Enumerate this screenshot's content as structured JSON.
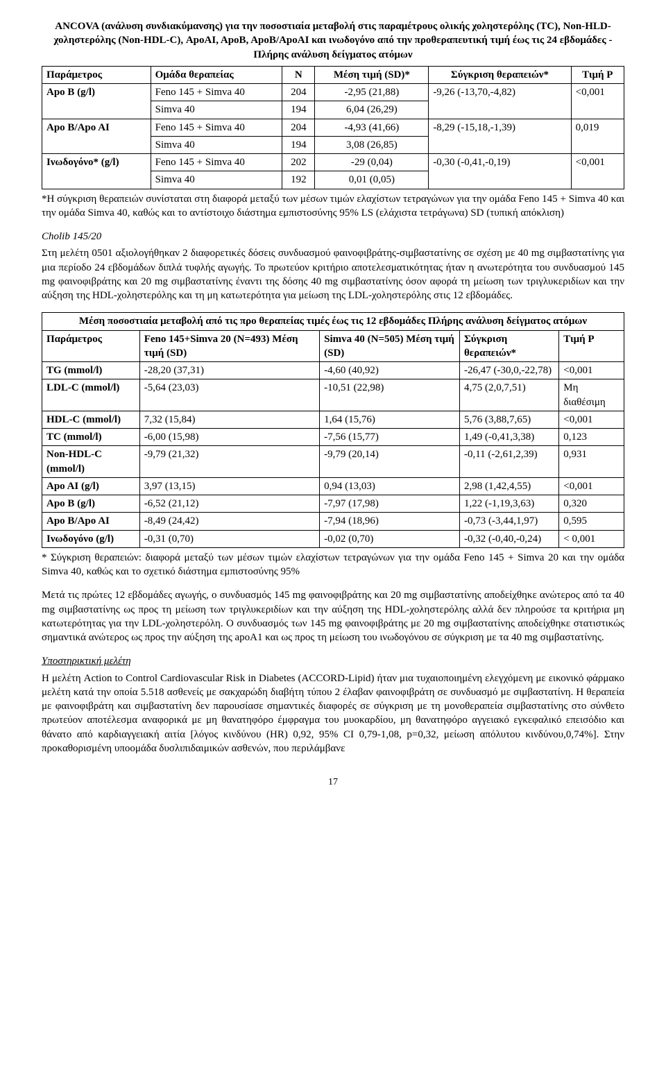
{
  "table1": {
    "title": "ANCOVA (ανάλυση συνδιακύμανσης) για την ποσοστιαία μεταβολή στις παραμέτρους ολικής χοληστερόλης (TC), Non-HLD-χοληστερόλης (Non-HDL-C), ApoAI, ApoB, ApoB/ApoAI και ινωδογόνο από την προθεραπευτική τιμή έως τις 24 εβδομάδες - Πλήρης ανάλυση δείγματος ατόμων",
    "headers": {
      "param": "Παράμετρος",
      "group": "Ομάδα θεραπείας",
      "n": "N",
      "mean": "Μέση τιμή (SD)*",
      "compare": "Σύγκριση θεραπειών*",
      "p": "Τιμή P"
    },
    "rows": {
      "r1": {
        "param": "Apo B (g/l)",
        "group_a": "Feno 145 + Simva 40",
        "group_b": "Simva 40",
        "n_a": "204",
        "n_b": "194",
        "mean_a": "-2,95 (21,88)",
        "mean_b": "6,04 (26,29)",
        "compare": "-9,26 (-13,70,-4,82)",
        "p": "<0,001"
      },
      "r2": {
        "param": "Apo B/Apo AI",
        "group_a": "Feno 145 + Simva 40",
        "group_b": "Simva 40",
        "n_a": "204",
        "n_b": "194",
        "mean_a": "-4,93 (41,66)",
        "mean_b": "3,08 (26,85)",
        "compare": "-8,29 (-15,18,-1,39)",
        "p": "0,019"
      },
      "r3": {
        "param": "Ινωδογόνο* (g/l)",
        "group_a": "Feno 145 + Simva 40",
        "group_b": "Simva 40",
        "n_a": "202",
        "n_b": "192",
        "mean_a": "-29 (0,04)",
        "mean_b": "0,01 (0,05)",
        "compare": "-0,30 (-0,41,-0,19)",
        "p": "<0,001"
      }
    },
    "footnote": "*Η σύγκριση θεραπειών συνίσταται στη διαφορά μεταξύ των μέσων τιμών ελαχίστων τετραγώνων για την ομάδα Feno 145 + Simva 40 και την ομάδα Simva 40, καθώς και το αντίστοιχο διάστημα εμπιστοσύνης 95% LS (ελάχιστα τετράγωνα) SD (τυπική απόκλιση)"
  },
  "section1": {
    "heading": "Cholib 145/20",
    "body": "Στη μελέτη 0501 αξιολογήθηκαν 2 διαφορετικές δόσεις συνδυασμού φαινοφιβράτης-σιμβαστατίνης σε σχέση με 40 mg σιμβαστατίνης για μια περίοδο 24 εβδομάδων διπλά τυφλής αγωγής. Το πρωτεύον κριτήριο αποτελεσματικότητας ήταν η ανωτερότητα του συνδυασμού 145 mg φαινοφιβράτης και 20 mg σιμβαστατίνης έναντι της δόσης 40 mg σιμβαστατίνης όσον αφορά τη μείωση των τριγλυκεριδίων και την αύξηση της HDL-χοληστερόλης και τη μη κατωτερότητα για μείωση της LDL-χοληστερόλης στις 12 εβδομάδες."
  },
  "table2": {
    "title": "Μέση ποσοστιαία μεταβολή από τις προ θεραπείας τιμές έως τις 12 εβδομάδες Πλήρης ανάλυση δείγματος ατόμων",
    "headers": {
      "param": "Παράμετρος",
      "col_a": "Feno 145+Simva 20 (N=493) Μέση τιμή (SD)",
      "col_b": "Simva 40 (N=505) Μέση τιμή (SD)",
      "compare": "Σύγκριση θεραπειών*",
      "p": "Τιμή P"
    },
    "rows": {
      "r1": {
        "param": "TG (mmol/l)",
        "a": "-28,20 (37,31)",
        "b": "-4,60 (40,92)",
        "c": "-26,47 (-30,0,-22,78)",
        "p": "<0,001"
      },
      "r2": {
        "param": "LDL-C (mmol/l)",
        "a": "-5,64 (23,03)",
        "b": "-10,51 (22,98)",
        "c": "4,75 (2,0,7,51)",
        "p": "Μη διαθέσιμη"
      },
      "r3": {
        "param": "HDL-C (mmol/l)",
        "a": "7,32 (15,84)",
        "b": "1,64 (15,76)",
        "c": "5,76 (3,88,7,65)",
        "p": "<0,001"
      },
      "r4": {
        "param": "TC (mmol/l)",
        "a": "-6,00 (15,98)",
        "b": "-7,56 (15,77)",
        "c": "1,49 (-0,41,3,38)",
        "p": "0,123"
      },
      "r5": {
        "param": "Non-HDL-C (mmol/l)",
        "a": "-9,79 (21,32)",
        "b": "-9,79 (20,14)",
        "c": "-0,11 (-2,61,2,39)",
        "p": "0,931"
      },
      "r6": {
        "param": "Apo AI (g/l)",
        "a": "3,97 (13,15)",
        "b": "0,94 (13,03)",
        "c": "2,98 (1,42,4,55)",
        "p": "<0,001"
      },
      "r7": {
        "param": "Apo B (g/l)",
        "a": "-6,52 (21,12)",
        "b": "-7,97 (17,98)",
        "c": "1,22 (-1,19,3,63)",
        "p": "0,320"
      },
      "r8": {
        "param": "Apo B/Apo AI",
        "a": "-8,49 (24,42)",
        "b": "-7,94 (18,96)",
        "c": "-0,73 (-3,44,1,97)",
        "p": "0,595"
      },
      "r9": {
        "param": "Ινωδογόνο (g/l)",
        "a": "-0,31 (0,70)",
        "b": "-0,02 (0,70)",
        "c": "-0,32 (-0,40,-0,24)",
        "p": "< 0,001"
      }
    },
    "footnote": "* Σύγκριση θεραπειών: διαφορά μεταξύ των μέσων τιμών ελαχίστων τετραγώνων για την ομάδα Feno 145 + Simva 20 και την ομάδα Simva 40, καθώς και το σχετικό διάστημα εμπιστοσύνης 95%"
  },
  "para2": "Μετά τις πρώτες 12 εβδομάδες αγωγής, ο συνδυασμός 145 mg φαινοφιβράτης και 20 mg σιμβαστατίνης αποδείχθηκε ανώτερος από τα 40 mg σιμβαστατίνης ως προς τη μείωση των τριγλυκεριδίων και την αύξηση της HDL-χοληστερόλης αλλά δεν πληρούσε τα κριτήρια μη κατωτερότητας για την LDL-χοληστερόλη. Ο συνδυασμός των 145 mg φαινοφιβράτης με 20 mg σιμβαστατίνης αποδείχθηκε στατιστικώς σημαντικά ανώτερος ως προς την αύξηση της apoA1 και ως προς τη μείωση του ινωδογόνου σε σύγκριση με τα 40 mg σιμβαστατίνης.",
  "section2": {
    "heading": "Υποστηρικτική μελέτη",
    "body": "Η μελέτη Action to Control Cardiovascular Risk in Diabetes (ACCORD-Lipid) ήταν μια τυχαιοποιημένη ελεγχόμενη με εικονικό φάρμακο μελέτη κατά την οποία 5.518 ασθενείς με σακχαρώδη διαβήτη τύπου 2 έλαβαν φαινοφιβράτη σε συνδυασμό με σιμβαστατίνη. Η θεραπεία με φαινοφιβράτη και σιμβαστατίνη δεν παρουσίασε σημαντικές διαφορές σε σύγκριση με τη μονοθεραπεία σιμβαστατίνης στο σύνθετο πρωτεύον αποτέλεσμα αναφορικά με μη θανατηφόρο έμφραγμα του μυοκαρδίου, μη θανατηφόρο αγγειακό εγκεφαλικό επεισόδιο και θάνατο από καρδιαγγειακή αιτία [λόγος κινδύνου (HR) 0,92, 95% CI 0,79-1,08, p=0,32, μείωση απόλυτου κινδύνου,0,74%]. Στην προκαθορισμένη υποομάδα δυσλιπιδαιμικών ασθενών, που περιλάμβανε"
  },
  "pagenum": "17"
}
